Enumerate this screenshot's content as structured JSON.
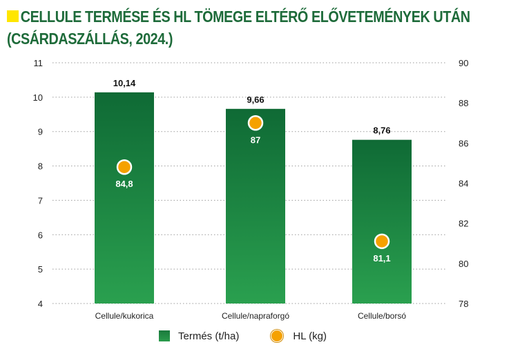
{
  "title": {
    "line1": "CELLULE TERMÉSE ÉS HL TÖMEGE ELTÉRŐ ELŐVETEMÉNYEK UTÁN",
    "line2": "(CSÁRDASZÁLLÁS, 2024.)"
  },
  "legend": {
    "bar_label": "Termés (t/ha)",
    "dot_label": "HL (kg)"
  },
  "colors": {
    "title": "#1e6b3a",
    "title_marker": "#ffe600",
    "bar_top": "#0f6a35",
    "bar_bottom": "#2aa04f",
    "dot_fill": "#f5a100",
    "dot_stroke": "#ffffff",
    "grid": "#9a9a9a",
    "axis_text": "#222222"
  },
  "chart_data": {
    "type": "bar",
    "categories": [
      "Cellule/kukorica",
      "Cellule/napraforgó",
      "Cellule/borsó"
    ],
    "series": [
      {
        "name": "Termés (t/ha)",
        "kind": "bar",
        "axis": "left",
        "values": [
          10.14,
          9.66,
          8.76
        ],
        "labels": [
          "10,14",
          "9,66",
          "8,76"
        ]
      },
      {
        "name": "HL (kg)",
        "kind": "dot",
        "axis": "right",
        "values": [
          84.8,
          87,
          81.1
        ],
        "labels": [
          "84,8",
          "87",
          "81,1"
        ]
      }
    ],
    "y_left": {
      "lim": [
        4,
        11
      ],
      "ticks": [
        4,
        5,
        6,
        7,
        8,
        9,
        10,
        11
      ]
    },
    "y_right": {
      "lim": [
        78,
        90
      ],
      "ticks": [
        78,
        80,
        82,
        84,
        86,
        88,
        90
      ]
    },
    "grid": true,
    "legend_position": "bottom"
  }
}
